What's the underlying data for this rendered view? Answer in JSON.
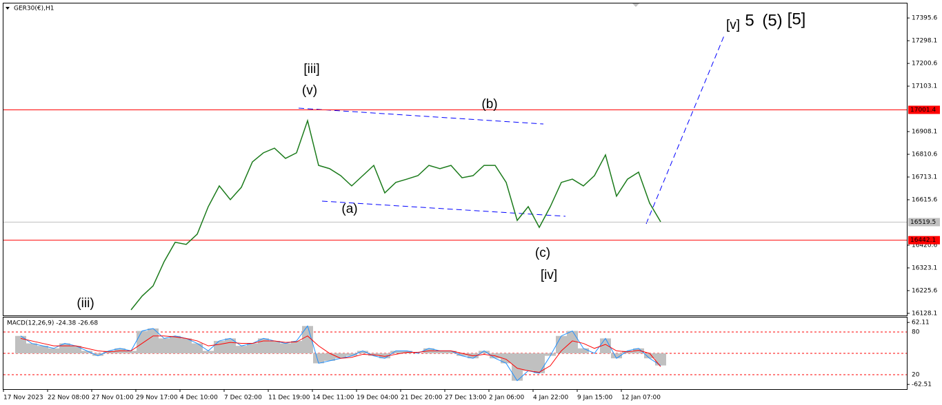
{
  "chart_data": [
    {
      "type": "line",
      "title": "GER30(€),H1",
      "color": "#1a7a1a",
      "categories": [
        "17 Nov 2023",
        null,
        null,
        null,
        "22 Nov 08:00",
        null,
        null,
        null,
        "27 Nov 01:00",
        null,
        null,
        null,
        "29 Nov 17:00",
        null,
        null,
        null,
        "4 Dec 10:00",
        null,
        null,
        null,
        "7 Dec 02:00",
        null,
        null,
        null,
        "11 Dec 19:00",
        null,
        null,
        null,
        "14 Dec 11:00",
        null,
        null,
        null,
        "19 Dec 04:00",
        null,
        null,
        null,
        "21 Dec 20:00",
        null,
        null,
        null,
        "27 Dec 13:00",
        null,
        null,
        null,
        "2 Jan 06:00",
        null,
        null,
        null,
        "4 Jan 22:00",
        null,
        null,
        null,
        "9 Jan 15:00",
        null,
        null,
        null,
        "12 Jan 07:00",
        null,
        null
      ],
      "values": [
        null,
        null,
        null,
        null,
        null,
        null,
        null,
        null,
        null,
        null,
        16143,
        16202,
        16246,
        16350,
        16433,
        16424,
        16468,
        16586,
        16675,
        16616,
        16669,
        16778,
        16817,
        16837,
        16793,
        16817,
        16955,
        16763,
        16749,
        16719,
        16675,
        16719,
        16763,
        16645,
        16690,
        16704,
        16719,
        16763,
        16749,
        16763,
        16710,
        16719,
        16763,
        16763,
        16690,
        16527,
        16586,
        16497,
        16586,
        16690,
        16704,
        16675,
        16719,
        16808,
        16631,
        16704,
        16734,
        16601,
        16521
      ],
      "ylim": [
        16119,
        17458
      ],
      "yticks": [
        17395.6,
        17298.1,
        17200.6,
        17103.1,
        16908.1,
        16810.6,
        16713.1,
        16615.6,
        16420.6,
        16323.1,
        16225.6,
        16128.1
      ],
      "levels": [
        {
          "value": 17001.4,
          "color": "#ff0000"
        },
        {
          "value": 16519.5,
          "color": "#c0c0c0"
        },
        {
          "value": 16442.1,
          "color": "#ff0000"
        }
      ],
      "annotations": [
        {
          "text": "(iii)",
          "color": "#0000ff"
        },
        {
          "text": "[iii]",
          "color": "#008000"
        },
        {
          "text": "(v)",
          "color": "#0000ff"
        },
        {
          "text": "(a)",
          "color": "#0000ff"
        },
        {
          "text": "(b)",
          "color": "#0000ff"
        },
        {
          "text": "(c)",
          "color": "#0000ff"
        },
        {
          "text": "[iv]",
          "color": "#008000"
        },
        {
          "text": "[v]",
          "color": "#008000"
        },
        {
          "text": "5",
          "color": "#0000ff"
        },
        {
          "text": "(5)",
          "color": "#ff0000"
        },
        {
          "text": "[5]",
          "color": "#000000"
        }
      ]
    },
    {
      "type": "macd",
      "title": "MACD(12,26,9) -24.38 -26.68",
      "histogram": {
        "color": "#c0c0c0",
        "values": [
          35,
          20,
          15,
          10,
          20,
          15,
          5,
          -5,
          5,
          10,
          5,
          45,
          50,
          30,
          35,
          30,
          20,
          5,
          25,
          30,
          15,
          20,
          30,
          25,
          20,
          25,
          55,
          -20,
          -15,
          -10,
          -5,
          5,
          -5,
          -10,
          5,
          5,
          0,
          10,
          5,
          5,
          -5,
          -10,
          5,
          -10,
          -20,
          -55,
          -35,
          -40,
          -5,
          35,
          45,
          10,
          0,
          30,
          -10,
          5,
          10,
          -10,
          -24.38
        ]
      },
      "signal": {
        "color": "#ff0000",
        "values": [
          30,
          25,
          20,
          15,
          15,
          15,
          10,
          5,
          3,
          5,
          5,
          20,
          35,
          35,
          33,
          30,
          25,
          15,
          18,
          22,
          20,
          20,
          25,
          25,
          22,
          23,
          35,
          15,
          0,
          -10,
          -8,
          -2,
          -3,
          -6,
          -2,
          2,
          2,
          5,
          5,
          5,
          0,
          -5,
          -2,
          -5,
          -12,
          -30,
          -35,
          -38,
          -25,
          5,
          25,
          20,
          10,
          18,
          5,
          3,
          6,
          0,
          -26.68
        ]
      },
      "ylim": [
        -72,
        72
      ],
      "yticks": [
        62.11,
        -62.51
      ],
      "level_labels": [
        "80",
        "20"
      ]
    }
  ]
}
